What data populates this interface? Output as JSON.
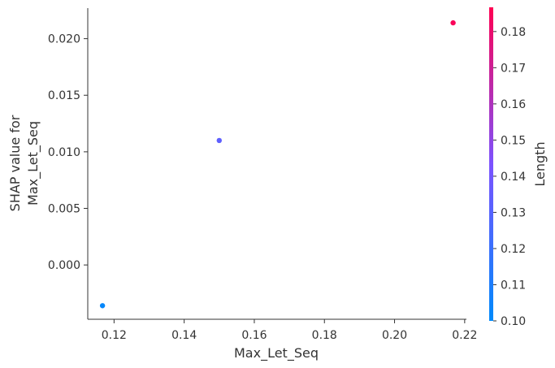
{
  "chart_data": {
    "type": "scatter",
    "xlabel": "Max_Let_Seq",
    "ylabel_lines": [
      "SHAP value for",
      "Max_Let_Seq"
    ],
    "xlim": [
      0.1125,
      0.2205
    ],
    "ylim": [
      -0.0048,
      0.0227
    ],
    "xticks": [
      0.12,
      0.14,
      0.16,
      0.18,
      0.2,
      0.22
    ],
    "xtick_labels": [
      "0.12",
      "0.14",
      "0.16",
      "0.18",
      "0.20",
      "0.22"
    ],
    "yticks": [
      0.0,
      0.005,
      0.01,
      0.015,
      0.02
    ],
    "ytick_labels": [
      "0.000",
      "0.005",
      "0.010",
      "0.015",
      "0.020"
    ],
    "points": [
      {
        "x": 0.1167,
        "y": -0.0036,
        "color_value": 0.102
      },
      {
        "x": 0.15,
        "y": 0.011,
        "color_value": 0.133
      },
      {
        "x": 0.2167,
        "y": 0.0214,
        "color_value": 0.185
      }
    ],
    "colorbar": {
      "label": "Length",
      "range": [
        0.1,
        0.1867
      ],
      "ticks": [
        0.1,
        0.11,
        0.12,
        0.13,
        0.14,
        0.15,
        0.16,
        0.17,
        0.18
      ],
      "tick_labels": [
        "0.10",
        "0.11",
        "0.12",
        "0.13",
        "0.14",
        "0.15",
        "0.16",
        "0.17",
        "0.18"
      ],
      "color_low": "#008afb",
      "color_mid": "#7c52ff",
      "color_high": "#ff0052"
    },
    "grid": false,
    "legend": "none"
  }
}
